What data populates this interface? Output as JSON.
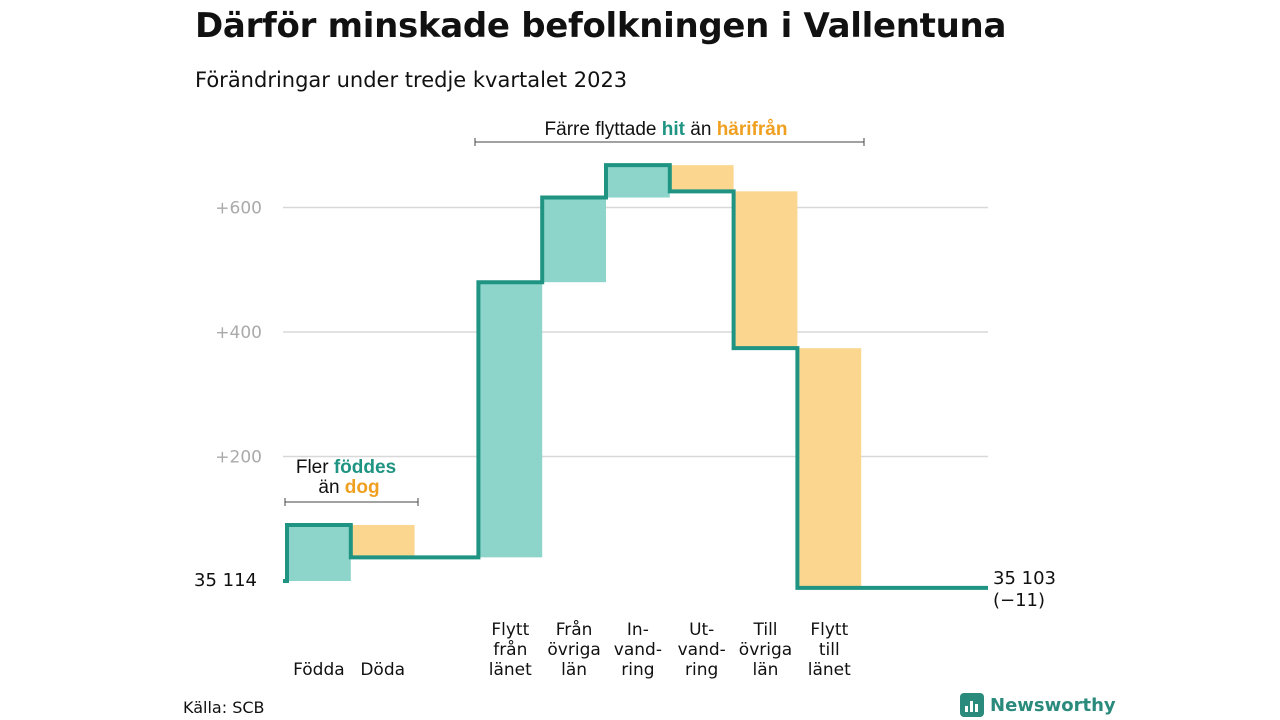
{
  "title": "Därför minskade befolkningen i Vallentuna",
  "subtitle": "Förändringar under tredje kvartalet 2023",
  "source": "Källa: SCB",
  "brand": "Newsworthy",
  "colors": {
    "inflow": "#8dd4ca",
    "outflow": "#fad68f",
    "line": "#1f9483",
    "grid": "#d8d8d8",
    "tick": "#aaaaaa",
    "accent_teal": "#1f9483",
    "accent_orange": "#f0a020"
  },
  "annotations": {
    "births": {
      "prefix": "Fler",
      "teal": "föddes",
      "line2_prefix": "än",
      "orange": "dog"
    },
    "moves": {
      "prefix": "Färre flyttade",
      "teal": "hit",
      "mid": "än",
      "orange": "härifrån"
    }
  },
  "start_label": "35  114",
  "end_label": "35 103",
  "end_change": "(−11)",
  "chart_data": {
    "type": "waterfall",
    "baseline": 35114,
    "ylim": [
      -10,
      700
    ],
    "yticks": [
      200,
      400,
      600
    ],
    "ytick_labels": [
      "+200",
      "+400",
      "+600"
    ],
    "steps": [
      {
        "label": [
          "Födda"
        ],
        "value": 90,
        "kind": "in"
      },
      {
        "label": [
          "Döda"
        ],
        "value": -52,
        "kind": "out"
      },
      {
        "label": [
          ""
        ],
        "value": 0,
        "kind": "gap"
      },
      {
        "label": [
          "Flytt",
          "från",
          "länet"
        ],
        "value": 442,
        "kind": "in"
      },
      {
        "label": [
          "Från",
          "övriga",
          "län"
        ],
        "value": 136,
        "kind": "in"
      },
      {
        "label": [
          "In-",
          "vand-",
          "ring"
        ],
        "value": 52,
        "kind": "in"
      },
      {
        "label": [
          "Ut-",
          "vand-",
          "ring"
        ],
        "value": -42,
        "kind": "out"
      },
      {
        "label": [
          "Till",
          "övriga",
          "län"
        ],
        "value": -252,
        "kind": "out"
      },
      {
        "label": [
          "Flytt",
          "till",
          "länet"
        ],
        "value": -385,
        "kind": "out"
      }
    ],
    "end_value": 35103,
    "end_change": -11
  }
}
